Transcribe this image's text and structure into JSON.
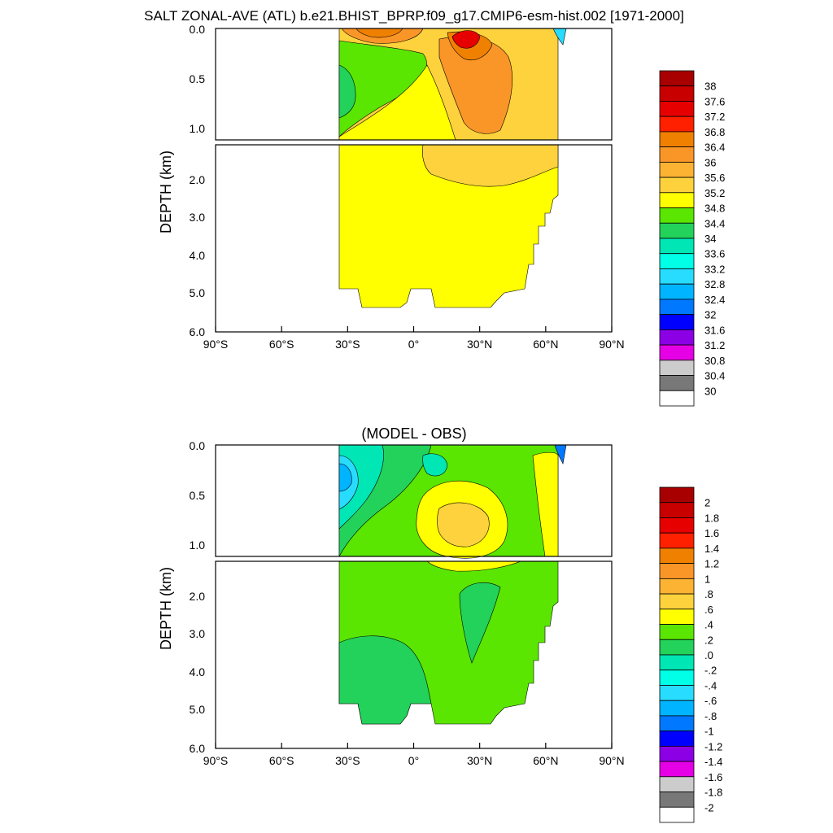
{
  "title": "SALT ZONAL-AVE (ATL) b.e21.BHIST_BPRP.f09_g17.CMIP6-esm-hist.002 [1971-2000]",
  "chart_data": [
    {
      "type": "heatmap",
      "panel": "top",
      "title": "",
      "ylabel": "DEPTH (km)",
      "xlabel": "",
      "x_ticks": [
        "90°S",
        "60°S",
        "30°S",
        "0°",
        "30°N",
        "60°N",
        "90°N"
      ],
      "y_ticks_upper": [
        "0.0",
        "0.5",
        "1.0"
      ],
      "y_ticks_lower": [
        "2.0",
        "3.0",
        "4.0",
        "5.0",
        "6.0"
      ],
      "colorbar_labels": [
        "38",
        "37.6",
        "37.2",
        "36.8",
        "36.4",
        "36",
        "35.6",
        "35.2",
        "34.8",
        "34.4",
        "34",
        "33.6",
        "33.2",
        "32.8",
        "32.4",
        "32",
        "31.6",
        "31.2",
        "30.8",
        "30.4",
        "30"
      ],
      "colors": [
        "#a80000",
        "#c80000",
        "#e60000",
        "#ff2000",
        "#f08000",
        "#fa9628",
        "#fcb232",
        "#fdd23c",
        "#ffff00",
        "#5ae600",
        "#23d25a",
        "#00e6b4",
        "#00ffe6",
        "#28dcff",
        "#00b4ff",
        "#0078ff",
        "#0000ff",
        "#8c00e6",
        "#e600e6",
        "#cccccc",
        "#787878",
        "#ffffff"
      ],
      "region_values": {
        "deep_ocean": 35.0,
        "intermediate_north": 35.4,
        "subtropical_north_core": 36.4,
        "subtropical_north_max": 37.4,
        "subtropical_south_core": 36.0,
        "south_intermediate_water": 34.6
      }
    },
    {
      "type": "heatmap",
      "panel": "bottom",
      "title": "(MODEL - OBS)",
      "ylabel": "DEPTH (km)",
      "xlabel": "",
      "x_ticks": [
        "90°S",
        "60°S",
        "30°S",
        "0°",
        "30°N",
        "60°N",
        "90°N"
      ],
      "y_ticks_upper": [
        "0.0",
        "0.5",
        "1.0"
      ],
      "y_ticks_lower": [
        "2.0",
        "3.0",
        "4.0",
        "5.0",
        "6.0"
      ],
      "colorbar_labels": [
        "2",
        "1.8",
        "1.6",
        "1.4",
        "1.2",
        "1",
        ".8",
        ".6",
        ".4",
        ".2",
        ".0",
        "-.2",
        "-.4",
        "-.6",
        "-.8",
        "-1",
        "-1.2",
        "-1.4",
        "-1.6",
        "-1.8",
        "-2"
      ],
      "colors": [
        "#a80000",
        "#c80000",
        "#e60000",
        "#ff2000",
        "#f08000",
        "#fa9628",
        "#fcb232",
        "#fdd23c",
        "#ffff00",
        "#5ae600",
        "#23d25a",
        "#00e6b4",
        "#00ffe6",
        "#28dcff",
        "#00b4ff",
        "#0078ff",
        "#0000ff",
        "#8c00e6",
        "#e600e6",
        "#cccccc",
        "#787878",
        "#ffffff"
      ],
      "region_values": {
        "deep_ocean": 0.3,
        "deep_lower_band": 0.1,
        "mid_depth_core_north": 0.7,
        "upper_north": 0.5,
        "south_surface_min": -0.7
      }
    }
  ]
}
